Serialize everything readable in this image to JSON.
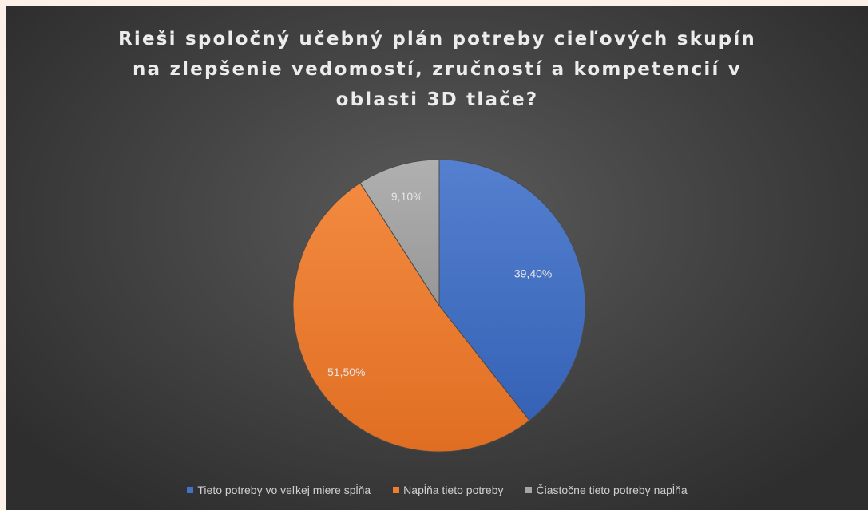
{
  "chart_data": {
    "type": "pie",
    "title": "Rieši spoločný učebný plán potreby cieľových skupín na zlepšenie vedomostí, zručností a kompetencií v oblasti 3D tlače?",
    "categories": [
      "Tieto potreby vo veľkej miere spĺňa",
      "Napĺňa tieto potreby",
      "Čiastočne tieto potreby napĺňa"
    ],
    "values": [
      39.4,
      51.5,
      9.1
    ],
    "data_labels": [
      "39,40%",
      "51,50%",
      "9,10%"
    ],
    "colors": [
      "#4472c4",
      "#ed7d31",
      "#a5a5a5"
    ],
    "legend_position": "bottom",
    "start_angle": "12 o'clock, clockwise"
  }
}
